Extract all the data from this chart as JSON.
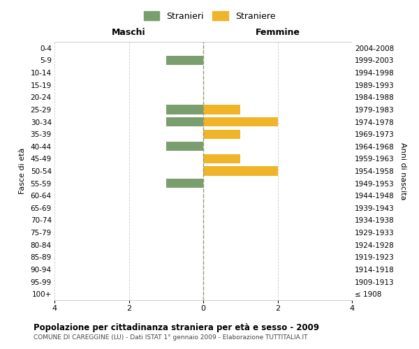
{
  "age_groups": [
    "100+",
    "95-99",
    "90-94",
    "85-89",
    "80-84",
    "75-79",
    "70-74",
    "65-69",
    "60-64",
    "55-59",
    "50-54",
    "45-49",
    "40-44",
    "35-39",
    "30-34",
    "25-29",
    "20-24",
    "15-19",
    "10-14",
    "5-9",
    "0-4"
  ],
  "birth_years": [
    "≤ 1908",
    "1909-1913",
    "1914-1918",
    "1919-1923",
    "1924-1928",
    "1929-1933",
    "1934-1938",
    "1939-1943",
    "1944-1948",
    "1949-1953",
    "1954-1958",
    "1959-1963",
    "1964-1968",
    "1969-1973",
    "1974-1978",
    "1979-1983",
    "1984-1988",
    "1989-1993",
    "1994-1998",
    "1999-2003",
    "2004-2008"
  ],
  "males": [
    0,
    0,
    0,
    0,
    0,
    0,
    0,
    0,
    0,
    -1,
    0,
    0,
    -1,
    0,
    -1,
    -1,
    0,
    0,
    0,
    -1,
    0
  ],
  "females": [
    0,
    0,
    0,
    0,
    0,
    0,
    0,
    0,
    0,
    0,
    2,
    1,
    0,
    1,
    2,
    1,
    0,
    0,
    0,
    0,
    0
  ],
  "male_color": "#7a9e6e",
  "female_color": "#f0b429",
  "title": "Popolazione per cittadinanza straniera per età e sesso - 2009",
  "subtitle": "COMUNE DI CAREGGINE (LU) - Dati ISTAT 1° gennaio 2009 - Elaborazione TUTTITALIA.IT",
  "header_left": "Maschi",
  "header_right": "Femmine",
  "ylabel_left": "Fasce di età",
  "ylabel_right": "Anni di nascita",
  "legend_male": "Stranieri",
  "legend_female": "Straniere",
  "xlim": [
    -4,
    4
  ],
  "xticks": [
    -4,
    -2,
    0,
    2,
    4
  ],
  "xticklabels": [
    "4",
    "2",
    "0",
    "2",
    "4"
  ],
  "bar_height": 0.75,
  "background_color": "#ffffff",
  "grid_color": "#cccccc",
  "center_line_color": "#999977"
}
